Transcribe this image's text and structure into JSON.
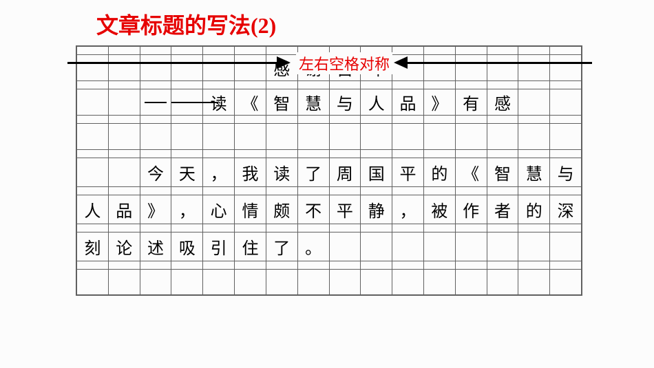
{
  "title": {
    "cn": "文章标题的写法",
    "num": "(2)"
  },
  "annotation": "左右空格对称",
  "grid": {
    "cols": 16,
    "title_color": "#e60000",
    "annotation_color": "#e60000",
    "cell_border": "#606060",
    "bg": "#fcfcfc",
    "text_color": "#000000",
    "title_fontsize": 32,
    "cell_fontsize": 24,
    "annotation_fontsize": 22
  },
  "rows": [
    {
      "type": "text",
      "cells": [
        "",
        "",
        "",
        "",
        "",
        "",
        "感",
        "谢",
        "自",
        "卑",
        "",
        "",
        "",
        "",
        "",
        ""
      ]
    },
    {
      "type": "spacer"
    },
    {
      "type": "text",
      "cells": [
        "",
        "",
        "—",
        "—",
        "读",
        "《",
        "智",
        "慧",
        "与",
        "人",
        "品",
        "》",
        "有",
        "感",
        "",
        ""
      ]
    },
    {
      "type": "spacer"
    },
    {
      "type": "text",
      "cells": [
        "",
        "",
        "",
        "",
        "",
        "",
        "",
        "",
        "",
        "",
        "",
        "",
        "",
        "",
        "",
        ""
      ]
    },
    {
      "type": "spacer"
    },
    {
      "type": "text",
      "tall": true,
      "cells": [
        "",
        "",
        "今",
        "天",
        "，",
        "我",
        "读",
        "了",
        "周",
        "国",
        "平",
        "的",
        "《",
        "智",
        "慧",
        "与"
      ]
    },
    {
      "type": "spacer"
    },
    {
      "type": "text",
      "tall": true,
      "cells": [
        "人",
        "品",
        "》",
        "，",
        "心",
        "情",
        "颇",
        "不",
        "平",
        "静",
        "，",
        "被",
        "作",
        "者",
        "的",
        "深"
      ]
    },
    {
      "type": "spacer"
    },
    {
      "type": "text",
      "tall": true,
      "cells": [
        "刻",
        "论",
        "述",
        "吸",
        "引",
        "住",
        "了",
        "。",
        "",
        "",
        "",
        "",
        "",
        "",
        "",
        ""
      ]
    },
    {
      "type": "spacer"
    },
    {
      "type": "text",
      "last": true,
      "cells": [
        "",
        "",
        "",
        "",
        "",
        "",
        "",
        "",
        "",
        "",
        "",
        "",
        "",
        "",
        "",
        ""
      ]
    }
  ]
}
